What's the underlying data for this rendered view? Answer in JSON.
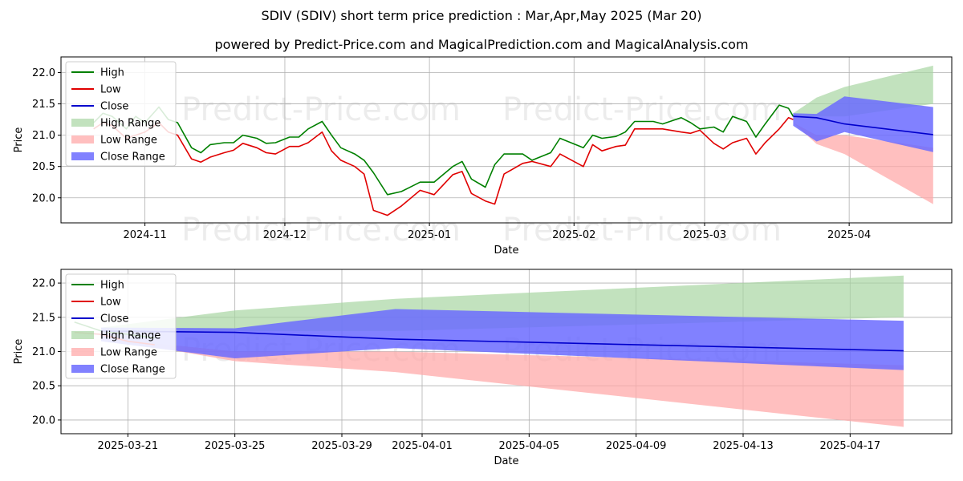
{
  "title_line1": "SDIV (SDIV) short term price prediction : Mar,Apr,May 2025 (Mar 20)",
  "title_line2": "powered by Predict-Price.com and MagicalPrediction.com and MagicalAnalysis.com",
  "watermark": "Predict-Price.com",
  "colors": {
    "high": "#008000",
    "low": "#e00000",
    "close": "#0000cc",
    "high_range": "#a8d5a2",
    "low_range": "#ffaaaa",
    "close_range": "#6b6bff"
  },
  "chart_data": [
    {
      "type": "line",
      "xlabel": "Date",
      "ylabel": "Price",
      "ylim": [
        19.6,
        22.25
      ],
      "xlim": [
        "2024-10-14",
        "2025-04-23"
      ],
      "grid": true,
      "legend_position": "top-left",
      "x_ticks": [
        {
          "date": "2024-11-01",
          "label": "2024-11"
        },
        {
          "date": "2024-12-01",
          "label": "2024-12"
        },
        {
          "date": "2025-01-01",
          "label": "2025-01"
        },
        {
          "date": "2025-02-01",
          "label": "2025-02"
        },
        {
          "date": "2025-03-01",
          "label": "2025-03"
        },
        {
          "date": "2025-04-01",
          "label": "2025-04"
        }
      ],
      "y_ticks": [
        20.0,
        20.5,
        21.0,
        21.5,
        22.0
      ],
      "legend": [
        "High",
        "Low",
        "Close",
        "High Range",
        "Low Range",
        "Close Range"
      ],
      "series": [
        {
          "name": "High",
          "x": [
            "2024-10-21",
            "2024-10-23",
            "2024-10-25",
            "2024-10-28",
            "2024-10-30",
            "2024-11-01",
            "2024-11-04",
            "2024-11-06",
            "2024-11-08",
            "2024-11-11",
            "2024-11-13",
            "2024-11-15",
            "2024-11-18",
            "2024-11-20",
            "2024-11-22",
            "2024-11-25",
            "2024-11-27",
            "2024-11-29",
            "2024-12-02",
            "2024-12-04",
            "2024-12-06",
            "2024-12-09",
            "2024-12-11",
            "2024-12-13",
            "2024-12-16",
            "2024-12-18",
            "2024-12-20",
            "2024-12-23",
            "2024-12-26",
            "2024-12-30",
            "2025-01-02",
            "2025-01-06",
            "2025-01-08",
            "2025-01-10",
            "2025-01-13",
            "2025-01-15",
            "2025-01-17",
            "2025-01-21",
            "2025-01-23",
            "2025-01-27",
            "2025-01-29",
            "2025-02-03",
            "2025-02-05",
            "2025-02-07",
            "2025-02-10",
            "2025-02-12",
            "2025-02-14",
            "2025-02-18",
            "2025-02-20",
            "2025-02-24",
            "2025-02-26",
            "2025-02-28",
            "2025-03-03",
            "2025-03-05",
            "2025-03-07",
            "2025-03-10",
            "2025-03-12",
            "2025-03-14",
            "2025-03-17",
            "2025-03-19",
            "2025-03-20"
          ],
          "values": [
            21.2,
            21.35,
            21.3,
            21.1,
            21.3,
            21.2,
            21.45,
            21.25,
            21.2,
            20.8,
            20.72,
            20.85,
            20.88,
            20.88,
            21.0,
            20.95,
            20.87,
            20.88,
            20.97,
            20.97,
            21.1,
            21.22,
            21.0,
            20.8,
            20.7,
            20.6,
            20.4,
            20.05,
            20.1,
            20.25,
            20.25,
            20.5,
            20.58,
            20.3,
            20.17,
            20.53,
            20.7,
            20.7,
            20.6,
            20.72,
            20.95,
            20.8,
            21.0,
            20.95,
            20.98,
            21.05,
            21.22,
            21.22,
            21.18,
            21.28,
            21.2,
            21.1,
            21.13,
            21.05,
            21.3,
            21.22,
            20.97,
            21.18,
            21.48,
            21.43,
            21.3
          ]
        },
        {
          "name": "Low",
          "x": [
            "2024-10-21",
            "2024-10-23",
            "2024-10-25",
            "2024-10-28",
            "2024-10-30",
            "2024-11-01",
            "2024-11-04",
            "2024-11-06",
            "2024-11-08",
            "2024-11-11",
            "2024-11-13",
            "2024-11-15",
            "2024-11-18",
            "2024-11-20",
            "2024-11-22",
            "2024-11-25",
            "2024-11-27",
            "2024-11-29",
            "2024-12-02",
            "2024-12-04",
            "2024-12-06",
            "2024-12-09",
            "2024-12-11",
            "2024-12-13",
            "2024-12-16",
            "2024-12-18",
            "2024-12-20",
            "2024-12-23",
            "2024-12-26",
            "2024-12-30",
            "2025-01-02",
            "2025-01-06",
            "2025-01-08",
            "2025-01-10",
            "2025-01-13",
            "2025-01-15",
            "2025-01-17",
            "2025-01-21",
            "2025-01-23",
            "2025-01-27",
            "2025-01-29",
            "2025-02-03",
            "2025-02-05",
            "2025-02-07",
            "2025-02-10",
            "2025-02-12",
            "2025-02-14",
            "2025-02-18",
            "2025-02-20",
            "2025-02-24",
            "2025-02-26",
            "2025-02-28",
            "2025-03-03",
            "2025-03-05",
            "2025-03-07",
            "2025-03-10",
            "2025-03-12",
            "2025-03-14",
            "2025-03-17",
            "2025-03-19",
            "2025-03-20"
          ],
          "values": [
            21.1,
            21.2,
            21.15,
            20.95,
            21.0,
            21.05,
            21.2,
            21.05,
            21.0,
            20.62,
            20.57,
            20.65,
            20.72,
            20.76,
            20.87,
            20.8,
            20.72,
            20.7,
            20.82,
            20.82,
            20.88,
            21.05,
            20.75,
            20.6,
            20.5,
            20.38,
            19.8,
            19.72,
            19.87,
            20.12,
            20.05,
            20.37,
            20.42,
            20.07,
            19.95,
            19.9,
            20.38,
            20.55,
            20.58,
            20.5,
            20.7,
            20.5,
            20.85,
            20.75,
            20.82,
            20.84,
            21.1,
            21.1,
            21.1,
            21.05,
            21.03,
            21.08,
            20.87,
            20.78,
            20.88,
            20.95,
            20.7,
            20.88,
            21.1,
            21.28,
            21.25
          ]
        },
        {
          "name": "Close",
          "x": [
            "2025-03-20",
            "2025-03-25",
            "2025-03-31",
            "2025-04-19"
          ],
          "values": [
            21.3,
            21.28,
            21.18,
            21.01
          ]
        }
      ],
      "bands": [
        {
          "name": "High Range",
          "x": [
            "2025-03-20",
            "2025-03-25",
            "2025-03-31",
            "2025-04-19"
          ],
          "upper": [
            21.35,
            21.6,
            21.77,
            22.11
          ],
          "lower": [
            21.3,
            21.3,
            21.3,
            21.5
          ]
        },
        {
          "name": "Low Range",
          "x": [
            "2025-03-20",
            "2025-03-25",
            "2025-03-31",
            "2025-04-19"
          ],
          "upper": [
            21.2,
            21.0,
            21.0,
            20.8
          ],
          "lower": [
            21.2,
            20.86,
            20.7,
            19.9
          ]
        },
        {
          "name": "Close Range",
          "x": [
            "2025-03-20",
            "2025-03-25",
            "2025-03-31",
            "2025-04-19"
          ],
          "upper": [
            21.35,
            21.34,
            21.62,
            21.45
          ],
          "lower": [
            21.15,
            20.9,
            21.05,
            20.73
          ]
        }
      ]
    },
    {
      "type": "line",
      "xlabel": "Date",
      "ylabel": "Price",
      "ylim": [
        19.8,
        22.2
      ],
      "xlim": [
        "2025-03-18.5",
        "2025-04-20.8"
      ],
      "grid": true,
      "legend_position": "top-left",
      "x_ticks": [
        {
          "date": "2025-03-21",
          "label": "2025-03-21"
        },
        {
          "date": "2025-03-25",
          "label": "2025-03-25"
        },
        {
          "date": "2025-03-29",
          "label": "2025-03-29"
        },
        {
          "date": "2025-04-01",
          "label": "2025-04-01"
        },
        {
          "date": "2025-04-05",
          "label": "2025-04-05"
        },
        {
          "date": "2025-04-09",
          "label": "2025-04-09"
        },
        {
          "date": "2025-04-13",
          "label": "2025-04-13"
        },
        {
          "date": "2025-04-17",
          "label": "2025-04-17"
        }
      ],
      "y_ticks": [
        20.0,
        20.5,
        21.0,
        21.5,
        22.0
      ],
      "legend": [
        "High",
        "Low",
        "Close",
        "High Range",
        "Low Range",
        "Close Range"
      ],
      "series": [
        {
          "name": "High",
          "x": [
            "2025-03-19",
            "2025-03-20",
            "2025-03-21",
            "2025-03-22"
          ],
          "values": [
            21.43,
            21.3,
            21.25,
            21.2
          ]
        },
        {
          "name": "Low",
          "x": [
            "2025-03-19",
            "2025-03-20",
            "2025-03-21",
            "2025-03-22"
          ],
          "values": [
            21.28,
            21.25,
            21.15,
            21.1
          ]
        },
        {
          "name": "Close",
          "x": [
            "2025-03-20",
            "2025-03-25",
            "2025-03-31",
            "2025-04-19"
          ],
          "values": [
            21.3,
            21.28,
            21.18,
            21.01
          ]
        }
      ],
      "bands": [
        {
          "name": "High Range",
          "x": [
            "2025-03-20",
            "2025-03-25",
            "2025-03-31",
            "2025-04-19"
          ],
          "upper": [
            21.35,
            21.6,
            21.77,
            22.11
          ],
          "lower": [
            21.3,
            21.3,
            21.3,
            21.5
          ]
        },
        {
          "name": "Low Range",
          "x": [
            "2025-03-20",
            "2025-03-25",
            "2025-03-31",
            "2025-04-19"
          ],
          "upper": [
            21.2,
            21.0,
            21.0,
            20.8
          ],
          "lower": [
            21.2,
            20.86,
            20.7,
            19.9
          ]
        },
        {
          "name": "Close Range",
          "x": [
            "2025-03-20",
            "2025-03-25",
            "2025-03-31",
            "2025-04-19"
          ],
          "upper": [
            21.35,
            21.34,
            21.62,
            21.45
          ],
          "lower": [
            21.15,
            20.9,
            21.05,
            20.73
          ]
        }
      ]
    }
  ]
}
